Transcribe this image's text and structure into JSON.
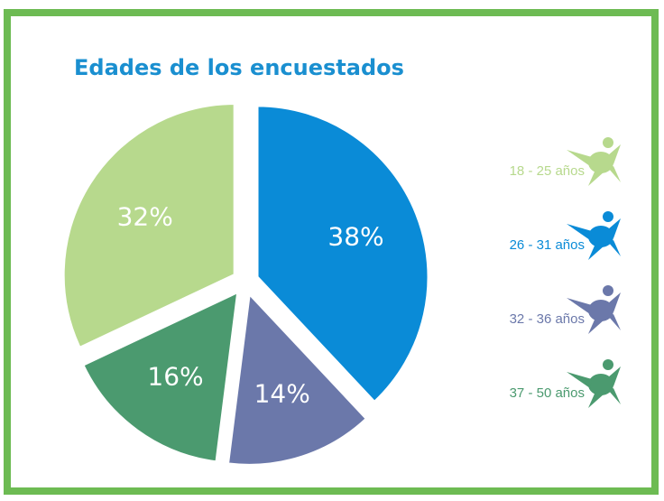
{
  "chart_data": {
    "type": "pie",
    "title": "Edades de los encuestados",
    "categories": [
      "18 - 25 años",
      "26 - 31 años",
      "32 - 36 años",
      "37 - 50 años"
    ],
    "values": [
      32,
      38,
      14,
      16
    ],
    "value_labels": [
      "32%",
      "38%",
      "14%",
      "16%"
    ],
    "colors": [
      "#b7d98d",
      "#0a8bd7",
      "#6b78aa",
      "#4b9a6f"
    ],
    "legend": "right"
  }
}
